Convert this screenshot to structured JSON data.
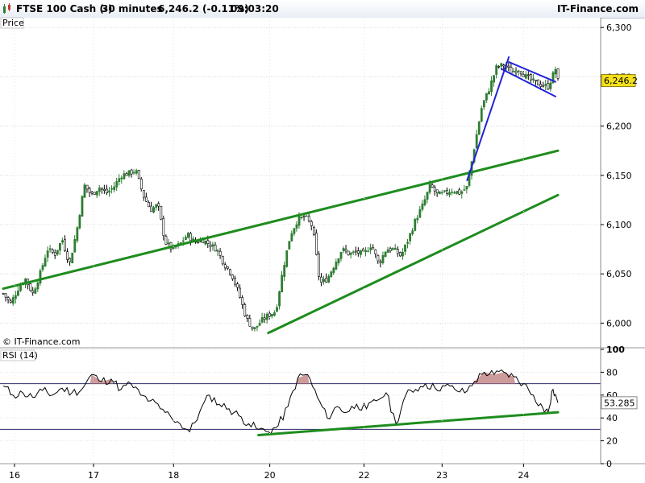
{
  "header": {
    "instrument": "FTSE 100 Cash (-)",
    "timeframe": "30 minutes",
    "price_change": "6,246.2 (-0.11%)",
    "time": "09:03:20",
    "brand": "IT-Finance.com"
  },
  "colors": {
    "up_candle": "#2e7d32",
    "down_candle": "#000000",
    "trendline_green": "#1e8c1e",
    "trendline_blue": "#2323d8",
    "price_marker_bg": "#f5e11a",
    "rsi_line": "#000000",
    "rsi_overbought_fill": "#c58a8a"
  },
  "chart_data": [
    {
      "type": "candlestick",
      "title": "Price",
      "source": "© IT-Finance.com",
      "x_tick_labels": [
        "16",
        "17",
        "18",
        "20",
        "22",
        "23",
        "24"
      ],
      "y_tick_labels": [
        "6,000",
        "6,050",
        "6,100",
        "6,150",
        "6,200",
        "6,250",
        "6,300"
      ],
      "ylim": [
        5975,
        6310
      ],
      "y_ticks": [
        6000,
        6050,
        6100,
        6150,
        6200,
        6250,
        6300
      ],
      "last_price_label": "6,246.2",
      "last_price": 6246.2,
      "close_path": [
        [
          0.0,
          6030
        ],
        [
          1.5,
          6020
        ],
        [
          3.0,
          6035
        ],
        [
          4.5,
          6045
        ],
        [
          6.0,
          6030
        ],
        [
          7.5,
          6050
        ],
        [
          9.0,
          6075
        ],
        [
          10.5,
          6070
        ],
        [
          12.0,
          6085
        ],
        [
          13.5,
          6060
        ],
        [
          15.0,
          6095
        ],
        [
          16.5,
          6140
        ],
        [
          18.0,
          6130
        ],
        [
          19.5,
          6138
        ],
        [
          21.0,
          6132
        ],
        [
          22.5,
          6138
        ],
        [
          24.0,
          6150
        ],
        [
          25.5,
          6152
        ],
        [
          27.0,
          6155
        ],
        [
          28.5,
          6130
        ],
        [
          30.0,
          6115
        ],
        [
          31.5,
          6120
        ],
        [
          33.0,
          6082
        ],
        [
          34.5,
          6075
        ],
        [
          36.0,
          6080
        ],
        [
          37.5,
          6090
        ],
        [
          39.0,
          6082
        ],
        [
          40.5,
          6085
        ],
        [
          42.0,
          6080
        ],
        [
          43.5,
          6075
        ],
        [
          45.0,
          6060
        ],
        [
          46.5,
          6050
        ],
        [
          48.0,
          6030
        ],
        [
          49.5,
          6005
        ],
        [
          51.0,
          5993
        ],
        [
          52.5,
          6002
        ],
        [
          54.0,
          6008
        ],
        [
          55.5,
          6012
        ],
        [
          57.0,
          6055
        ],
        [
          58.5,
          6090
        ],
        [
          60.0,
          6105
        ],
        [
          61.5,
          6108
        ],
        [
          63.0,
          6098
        ],
        [
          64.5,
          6040
        ],
        [
          66.0,
          6045
        ],
        [
          67.5,
          6060
        ],
        [
          69.0,
          6075
        ],
        [
          70.5,
          6070
        ],
        [
          72.0,
          6072
        ],
        [
          73.5,
          6070
        ],
        [
          75.0,
          6080
        ],
        [
          76.5,
          6060
        ],
        [
          78.0,
          6075
        ],
        [
          79.5,
          6075
        ],
        [
          81.0,
          6068
        ],
        [
          82.5,
          6085
        ],
        [
          84.0,
          6105
        ],
        [
          85.5,
          6120
        ],
        [
          87.0,
          6140
        ],
        [
          88.5,
          6130
        ],
        [
          90.0,
          6132
        ],
        [
          91.5,
          6135
        ],
        [
          93.0,
          6132
        ],
        [
          94.5,
          6138
        ],
        [
          96.0,
          6180
        ],
        [
          97.5,
          6220
        ],
        [
          99.0,
          6238
        ],
        [
          100.5,
          6260
        ],
        [
          102.0,
          6262
        ],
        [
          103.5,
          6255
        ],
        [
          105.0,
          6258
        ],
        [
          106.5,
          6250
        ],
        [
          108.0,
          6245
        ],
        [
          109.5,
          6242
        ],
        [
          111.0,
          6240
        ],
        [
          112.5,
          6258
        ],
        [
          113.0,
          6246
        ]
      ],
      "trendlines": [
        {
          "name": "upper support",
          "from": [
            0.0,
            6035
          ],
          "to": [
            113.0,
            6175
          ],
          "color": "green"
        },
        {
          "name": "lower support",
          "from": [
            54.0,
            5990
          ],
          "to": [
            113.0,
            6130
          ],
          "color": "green"
        },
        {
          "name": "breakout",
          "from": [
            94.5,
            6145
          ],
          "to": [
            103.0,
            6270
          ],
          "color": "blue"
        },
        {
          "name": "flag top",
          "from": [
            103.0,
            6265
          ],
          "to": [
            112.5,
            6245
          ],
          "color": "blue"
        },
        {
          "name": "flag bottom",
          "from": [
            101.5,
            6258
          ],
          "to": [
            112.5,
            6230
          ],
          "color": "blue"
        }
      ]
    },
    {
      "type": "line",
      "title": "RSI (14)",
      "y_tick_labels": [
        "0",
        "20",
        "40",
        "60",
        "80",
        "100"
      ],
      "ylim": [
        0,
        100
      ],
      "overbought": 70,
      "oversold": 30,
      "last_value_label": "53.285",
      "last_value": 53.285,
      "values": [
        [
          0.0,
          68
        ],
        [
          2.0,
          60
        ],
        [
          4.0,
          62
        ],
        [
          6.0,
          58
        ],
        [
          8.0,
          64
        ],
        [
          10.0,
          60
        ],
        [
          12.0,
          66
        ],
        [
          14.0,
          62
        ],
        [
          16.0,
          65
        ],
        [
          18.0,
          78
        ],
        [
          20.0,
          72
        ],
        [
          22.0,
          74
        ],
        [
          24.0,
          65
        ],
        [
          26.0,
          70
        ],
        [
          28.0,
          60
        ],
        [
          30.0,
          55
        ],
        [
          32.0,
          48
        ],
        [
          34.0,
          42
        ],
        [
          36.0,
          35
        ],
        [
          38.0,
          28
        ],
        [
          40.0,
          45
        ],
        [
          42.0,
          60
        ],
        [
          44.0,
          52
        ],
        [
          46.0,
          48
        ],
        [
          48.0,
          42
        ],
        [
          50.0,
          35
        ],
        [
          52.0,
          30
        ],
        [
          54.0,
          28
        ],
        [
          56.0,
          33
        ],
        [
          58.0,
          50
        ],
        [
          60.0,
          75
        ],
        [
          62.0,
          78
        ],
        [
          64.0,
          58
        ],
        [
          66.0,
          40
        ],
        [
          68.0,
          50
        ],
        [
          70.0,
          45
        ],
        [
          72.0,
          52
        ],
        [
          74.0,
          48
        ],
        [
          76.0,
          55
        ],
        [
          78.0,
          62
        ],
        [
          80.0,
          35
        ],
        [
          82.0,
          60
        ],
        [
          84.0,
          65
        ],
        [
          86.0,
          70
        ],
        [
          88.0,
          66
        ],
        [
          90.0,
          68
        ],
        [
          92.0,
          65
        ],
        [
          94.0,
          62
        ],
        [
          96.0,
          72
        ],
        [
          98.0,
          80
        ],
        [
          100.0,
          78
        ],
        [
          102.0,
          80
        ],
        [
          104.0,
          76
        ],
        [
          106.0,
          70
        ],
        [
          108.0,
          60
        ],
        [
          110.0,
          48
        ],
        [
          111.0,
          45
        ],
        [
          112.0,
          65
        ],
        [
          113.0,
          53.285
        ]
      ],
      "trendline": {
        "from": [
          52.0,
          25
        ],
        "to": [
          113.0,
          45
        ],
        "color": "green"
      }
    }
  ]
}
